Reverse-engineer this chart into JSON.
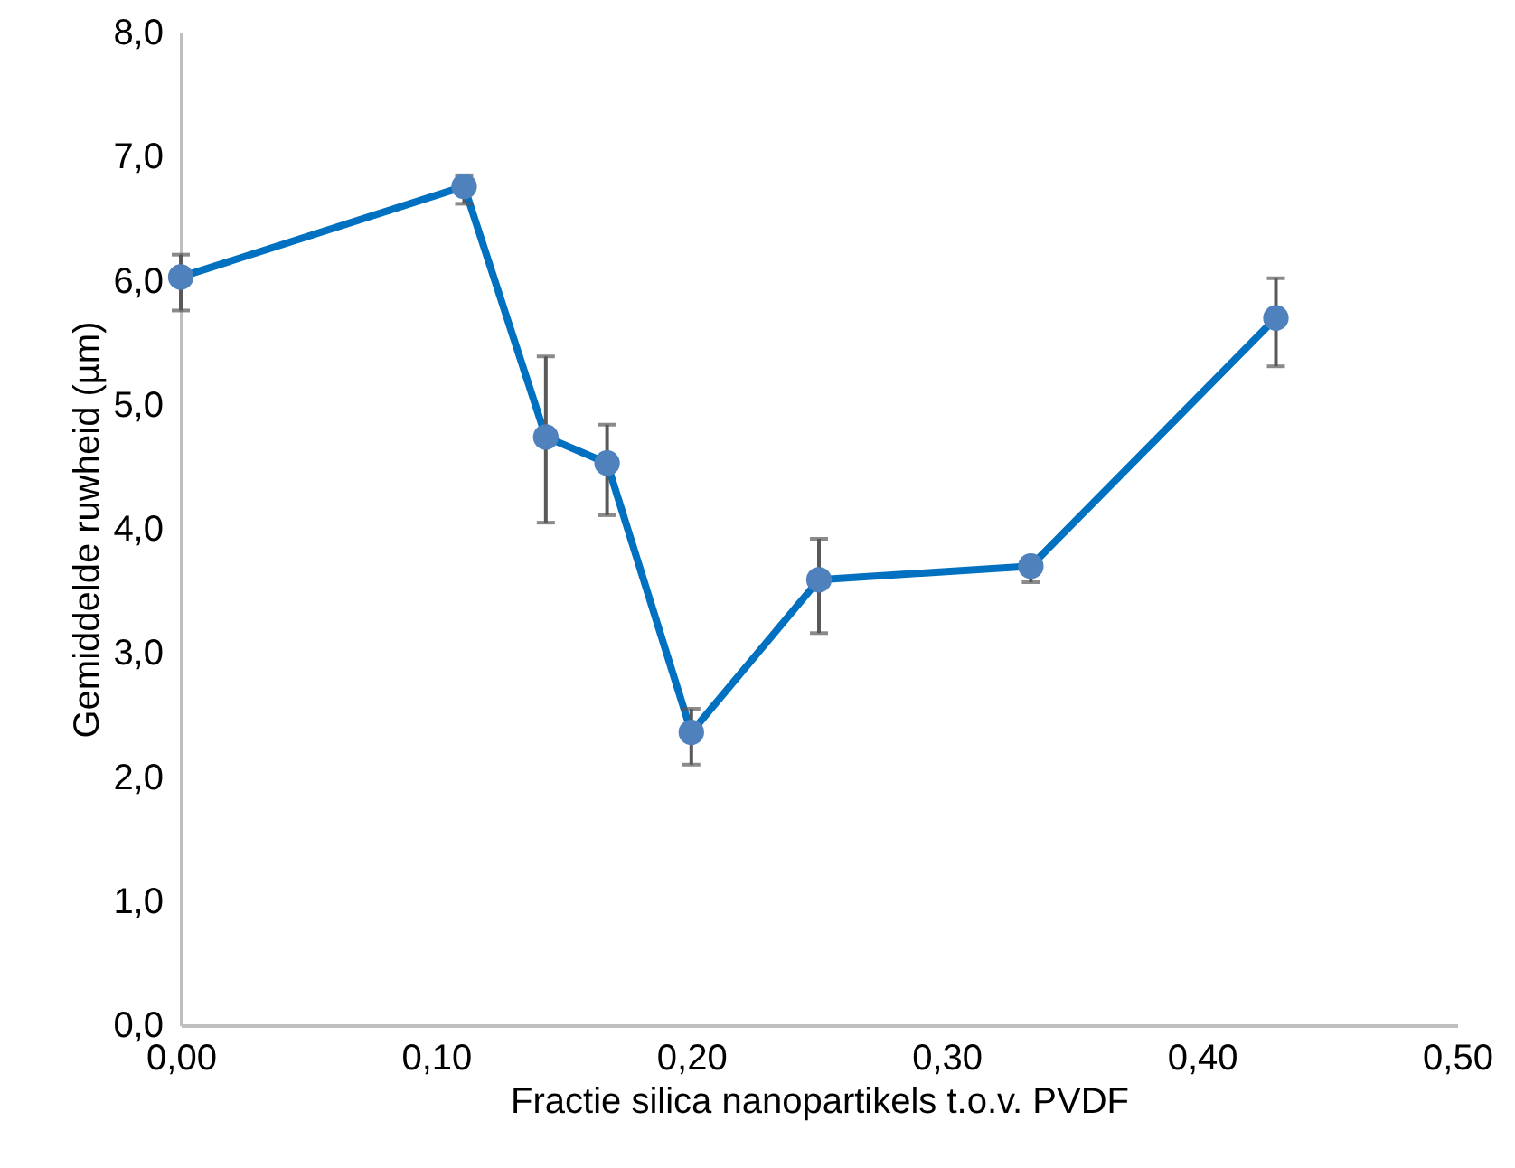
{
  "chart_data": {
    "type": "line",
    "xlabel": "Fractie silica nanopartikels t.o.v. PVDF",
    "ylabel": "Gemiddelde ruwheid (µm)",
    "x": [
      0,
      0.111,
      0.143,
      0.167,
      0.2,
      0.25,
      0.333,
      0.429
    ],
    "series": [
      {
        "color": "#0070c0",
        "values": [
          6.03,
          6.76,
          4.74,
          4.53,
          2.36,
          3.59,
          3.7,
          5.7
        ],
        "errors": [
          [
            5.76,
            6.21
          ],
          [
            6.62,
            6.85
          ],
          [
            4.05,
            5.39
          ],
          [
            4.11,
            4.84
          ],
          [
            2.1,
            2.55
          ],
          [
            3.16,
            3.92
          ],
          [
            3.57,
            3.76
          ],
          [
            5.31,
            6.02
          ]
        ]
      }
    ],
    "marker": "circle",
    "grid": false,
    "xlim": [
      0,
      0.5
    ],
    "xticks": [
      {
        "value": 0,
        "label": "0,00"
      },
      {
        "value": 0.1,
        "label": "0,10"
      },
      {
        "value": 0.2,
        "label": "0,20"
      },
      {
        "value": 0.3,
        "label": "0,30"
      },
      {
        "value": 0.4,
        "label": "0,40"
      },
      {
        "value": 0.5,
        "label": "0,50"
      }
    ],
    "ylim": [
      0,
      8
    ],
    "yticks": [
      {
        "value": 0,
        "label": "0,0"
      },
      {
        "value": 1,
        "label": "1,0"
      },
      {
        "value": 2,
        "label": "2,0"
      },
      {
        "value": 3,
        "label": "3,0"
      },
      {
        "value": 4,
        "label": "4,0"
      },
      {
        "value": 5,
        "label": "5,0"
      },
      {
        "value": 6,
        "label": "6,0"
      },
      {
        "value": 7,
        "label": "7,0"
      },
      {
        "value": 8,
        "label": "8,0"
      }
    ]
  }
}
